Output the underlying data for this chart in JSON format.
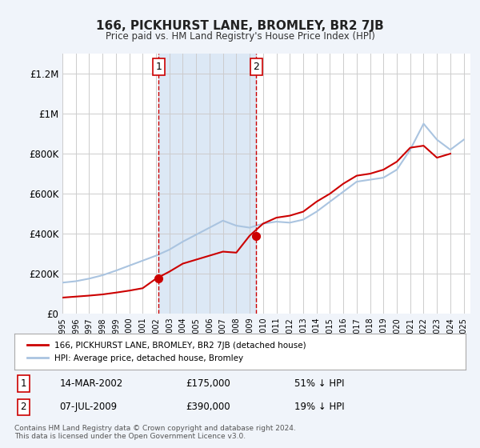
{
  "title": "166, PICKHURST LANE, BROMLEY, BR2 7JB",
  "subtitle": "Price paid vs. HM Land Registry's House Price Index (HPI)",
  "background_color": "#f0f4fa",
  "plot_bg_color": "#ffffff",
  "ylabel": "",
  "ylim": [
    0,
    1300000
  ],
  "yticks": [
    0,
    200000,
    400000,
    600000,
    800000,
    1000000,
    1200000
  ],
  "ytick_labels": [
    "£0",
    "£200K",
    "£400K",
    "£600K",
    "£800K",
    "£1M",
    "£1.2M"
  ],
  "hpi_color": "#aac4e0",
  "price_color": "#cc0000",
  "marker_color": "#cc0000",
  "dashed_line_color": "#cc0000",
  "shade_color": "#dce8f5",
  "transaction1_x": 2002.2,
  "transaction1_y": 175000,
  "transaction2_x": 2009.5,
  "transaction2_y": 390000,
  "legend_label_price": "166, PICKHURST LANE, BROMLEY, BR2 7JB (detached house)",
  "legend_label_hpi": "HPI: Average price, detached house, Bromley",
  "annotation1_label": "1",
  "annotation2_label": "2",
  "table_row1": [
    "1",
    "14-MAR-2002",
    "£175,000",
    "51% ↓ HPI"
  ],
  "table_row2": [
    "2",
    "07-JUL-2009",
    "£390,000",
    "19% ↓ HPI"
  ],
  "footer_text": "Contains HM Land Registry data © Crown copyright and database right 2024.\nThis data is licensed under the Open Government Licence v3.0.",
  "xmin": 1995,
  "xmax": 2025.5,
  "hpi_years": [
    1995,
    1996,
    1997,
    1998,
    1999,
    2000,
    2001,
    2002,
    2003,
    2004,
    2005,
    2006,
    2007,
    2008,
    2009,
    2010,
    2011,
    2012,
    2013,
    2014,
    2015,
    2016,
    2017,
    2018,
    2019,
    2020,
    2021,
    2022,
    2023,
    2024,
    2025
  ],
  "hpi_values": [
    155000,
    162000,
    175000,
    192000,
    215000,
    240000,
    265000,
    290000,
    320000,
    360000,
    395000,
    430000,
    465000,
    440000,
    430000,
    450000,
    460000,
    455000,
    470000,
    510000,
    560000,
    610000,
    660000,
    670000,
    680000,
    720000,
    820000,
    950000,
    870000,
    820000,
    870000
  ],
  "price_years": [
    1995,
    1996,
    1997,
    1998,
    1999,
    2000,
    2001,
    2002,
    2003,
    2004,
    2005,
    2006,
    2007,
    2008,
    2009,
    2010,
    2011,
    2012,
    2013,
    2014,
    2015,
    2016,
    2017,
    2018,
    2019,
    2020,
    2021,
    2022,
    2023,
    2024
  ],
  "price_values": [
    80000,
    85000,
    90000,
    96000,
    105000,
    115000,
    127000,
    175000,
    210000,
    250000,
    270000,
    290000,
    310000,
    305000,
    390000,
    450000,
    480000,
    490000,
    510000,
    560000,
    600000,
    650000,
    690000,
    700000,
    720000,
    760000,
    830000,
    840000,
    780000,
    800000
  ]
}
